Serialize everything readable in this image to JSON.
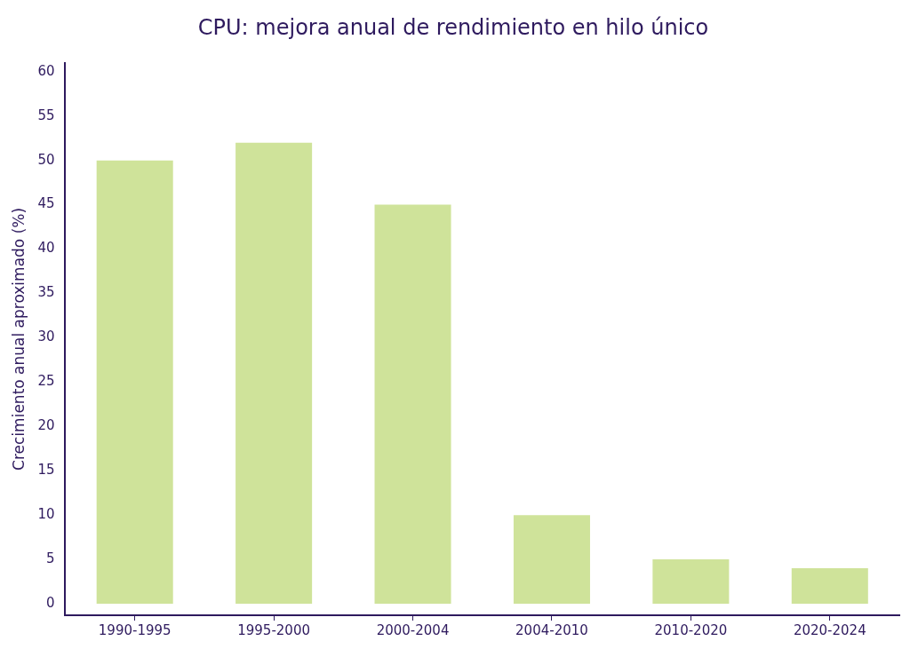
{
  "chart_data": {
    "type": "bar",
    "title": "CPU: mejora anual de rendimiento en hilo único",
    "ylabel": "Crecimiento anual aproximado (%)",
    "categories": [
      "1990-1995",
      "1995-2000",
      "2000-2004",
      "2004-2010",
      "2010-2020",
      "2020-2024"
    ],
    "values": [
      50,
      52,
      45,
      10,
      5,
      4
    ],
    "color": "#cfe39a",
    "ylim": [
      -1.3,
      61
    ],
    "yticks": [
      0,
      5,
      10,
      15,
      20,
      25,
      30,
      35,
      40,
      45,
      50,
      55,
      60
    ],
    "grid": false,
    "legend": false
  }
}
